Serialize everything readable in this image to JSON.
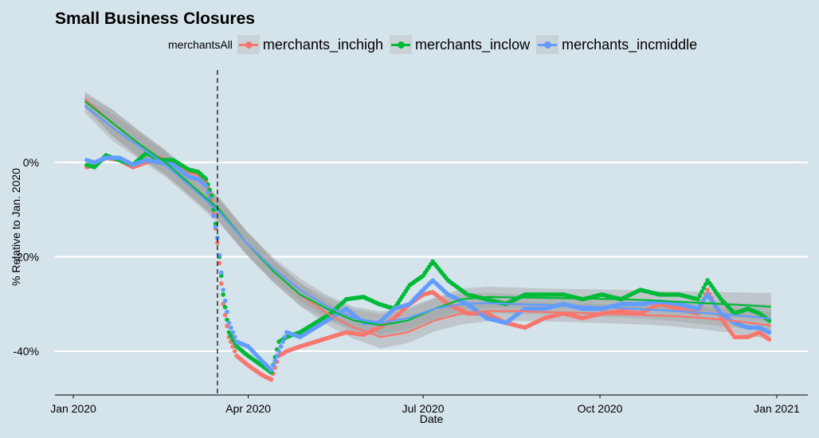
{
  "chart_data": {
    "type": "scatter",
    "title": "Small Business Closures",
    "xlabel": "Date",
    "ylabel": "% Relative to Jan. 2020",
    "legend_title": "merchantsAll",
    "legend_position": "top",
    "grid": "horizontal major only",
    "xlim": [
      "2020-01-01",
      "2021-01-01"
    ],
    "ylim": [
      -49,
      17
    ],
    "x_ticks": [
      {
        "date": "2020-01-01",
        "label": "Jan 2020"
      },
      {
        "date": "2020-04-01",
        "label": "Apr 2020"
      },
      {
        "date": "2020-07-01",
        "label": "Jul 2020"
      },
      {
        "date": "2020-10-01",
        "label": "Oct 2020"
      },
      {
        "date": "2021-01-01",
        "label": "Jan 2021"
      }
    ],
    "y_ticks": [
      {
        "value": 0,
        "label": "0%"
      },
      {
        "value": -20,
        "label": "-20%"
      },
      {
        "value": -40,
        "label": "-40%"
      }
    ],
    "vline": {
      "date": "2020-03-16",
      "style": "dashed"
    },
    "smooth_x": [
      "2020-01-07",
      "2020-01-21",
      "2020-02-04",
      "2020-02-18",
      "2020-03-03",
      "2020-03-17",
      "2020-03-31",
      "2020-04-14",
      "2020-04-28",
      "2020-05-12",
      "2020-05-26",
      "2020-06-09",
      "2020-06-23",
      "2020-07-07",
      "2020-07-21",
      "2020-08-04",
      "2020-08-18",
      "2020-09-01",
      "2020-09-15",
      "2020-09-29",
      "2020-10-13",
      "2020-10-27",
      "2020-11-10",
      "2020-11-24",
      "2020-12-08",
      "2020-12-22",
      "2020-12-29"
    ],
    "series": [
      {
        "name": "merchants_inchigh",
        "color": "#f8766d",
        "x": [
          "2020-01-08",
          "2020-01-12",
          "2020-01-18",
          "2020-01-25",
          "2020-02-01",
          "2020-02-08",
          "2020-02-15",
          "2020-02-22",
          "2020-03-01",
          "2020-03-06",
          "2020-03-10",
          "2020-03-13",
          "2020-03-16",
          "2020-03-19",
          "2020-03-22",
          "2020-03-26",
          "2020-04-01",
          "2020-04-08",
          "2020-04-13",
          "2020-04-17",
          "2020-04-21",
          "2020-04-28",
          "2020-05-06",
          "2020-05-14",
          "2020-05-22",
          "2020-05-31",
          "2020-06-08",
          "2020-06-16",
          "2020-06-24",
          "2020-07-01",
          "2020-07-06",
          "2020-07-14",
          "2020-07-24",
          "2020-08-03",
          "2020-08-13",
          "2020-08-23",
          "2020-09-02",
          "2020-09-12",
          "2020-09-22",
          "2020-10-02",
          "2020-10-12",
          "2020-10-22",
          "2020-11-01",
          "2020-11-11",
          "2020-11-21",
          "2020-11-26",
          "2020-12-03",
          "2020-12-10",
          "2020-12-17",
          "2020-12-23",
          "2020-12-28"
        ],
        "y": [
          -1,
          -0.5,
          1,
          0.5,
          -1,
          0,
          1,
          -0.5,
          -2,
          -2.5,
          -4,
          -8,
          -17,
          -30,
          -37,
          -41,
          -43,
          -45,
          -46,
          -41,
          -40,
          -39,
          -38,
          -37,
          -36,
          -36.5,
          -35,
          -33,
          -30,
          -28,
          -27.5,
          -30,
          -32,
          -32,
          -34,
          -35,
          -33,
          -32,
          -33,
          -32,
          -31.5,
          -32,
          -30,
          -31,
          -32,
          -27,
          -33,
          -37,
          -37,
          -36,
          -37.5
        ],
        "smooth_y": [
          13.5,
          8.5,
          4,
          0,
          -5,
          -10,
          -17,
          -23,
          -28,
          -32,
          -35,
          -37,
          -36,
          -33.5,
          -32,
          -31.5,
          -31.5,
          -31.7,
          -31.8,
          -32,
          -32.2,
          -32.4,
          -32.6,
          -33,
          -33.5,
          -34.2,
          -34.6
        ],
        "band": [
          1.5,
          2.8,
          2.8,
          2.6,
          2.5,
          2.5,
          2.5,
          2.4,
          2.4,
          2.4,
          2.4,
          2.4,
          2.3,
          2.3,
          2.3,
          2.2,
          2.1,
          2.0,
          2.0,
          2.0,
          2.0,
          2.0,
          2.2,
          2.4,
          2.6,
          2.8,
          3.0
        ]
      },
      {
        "name": "merchants_inclow",
        "color": "#00ba38",
        "x": [
          "2020-01-08",
          "2020-01-12",
          "2020-01-18",
          "2020-01-25",
          "2020-02-01",
          "2020-02-08",
          "2020-02-15",
          "2020-02-22",
          "2020-03-01",
          "2020-03-06",
          "2020-03-10",
          "2020-03-13",
          "2020-03-16",
          "2020-03-19",
          "2020-03-22",
          "2020-03-26",
          "2020-04-01",
          "2020-04-08",
          "2020-04-13",
          "2020-04-17",
          "2020-04-21",
          "2020-04-28",
          "2020-05-06",
          "2020-05-14",
          "2020-05-22",
          "2020-05-31",
          "2020-06-08",
          "2020-06-16",
          "2020-06-24",
          "2020-07-01",
          "2020-07-06",
          "2020-07-14",
          "2020-07-24",
          "2020-08-03",
          "2020-08-13",
          "2020-08-23",
          "2020-09-02",
          "2020-09-12",
          "2020-09-22",
          "2020-10-02",
          "2020-10-12",
          "2020-10-22",
          "2020-11-01",
          "2020-11-11",
          "2020-11-21",
          "2020-11-26",
          "2020-12-03",
          "2020-12-10",
          "2020-12-17",
          "2020-12-23",
          "2020-12-28"
        ],
        "y": [
          -0.5,
          -1,
          1.5,
          0.5,
          -0.5,
          2,
          0.5,
          0.5,
          -1.5,
          -2,
          -3.5,
          -7,
          -16,
          -28,
          -36,
          -39,
          -41,
          -43,
          -44.5,
          -38,
          -37,
          -36,
          -34,
          -32,
          -29,
          -28.5,
          -30,
          -31,
          -26,
          -24,
          -21,
          -25,
          -28,
          -29,
          -30,
          -28,
          -28,
          -28,
          -29,
          -28,
          -29,
          -27,
          -28,
          -28,
          -29,
          -25,
          -29,
          -32,
          -31,
          -32,
          -33.5
        ],
        "smooth_y": [
          13,
          8.5,
          4,
          0,
          -5,
          -10,
          -17,
          -23,
          -28,
          -31,
          -33.5,
          -34.5,
          -33.5,
          -31,
          -29,
          -28.5,
          -28.6,
          -28.7,
          -28.8,
          -28.9,
          -29,
          -29.2,
          -29.5,
          -29.8,
          -30.1,
          -30.4,
          -30.6
        ],
        "band": [
          1.5,
          2.8,
          2.8,
          2.6,
          2.5,
          2.5,
          2.5,
          2.4,
          2.4,
          2.4,
          2.4,
          2.4,
          2.3,
          2.3,
          2.3,
          2.2,
          2.1,
          2.0,
          2.0,
          2.0,
          2.0,
          2.0,
          2.2,
          2.4,
          2.6,
          2.8,
          3.0
        ]
      },
      {
        "name": "merchants_incmiddle",
        "color": "#619cff",
        "x": [
          "2020-01-08",
          "2020-01-12",
          "2020-01-18",
          "2020-01-25",
          "2020-02-01",
          "2020-02-08",
          "2020-02-15",
          "2020-02-22",
          "2020-03-01",
          "2020-03-06",
          "2020-03-10",
          "2020-03-13",
          "2020-03-16",
          "2020-03-19",
          "2020-03-22",
          "2020-03-26",
          "2020-04-01",
          "2020-04-08",
          "2020-04-13",
          "2020-04-17",
          "2020-04-21",
          "2020-04-28",
          "2020-05-06",
          "2020-05-14",
          "2020-05-22",
          "2020-05-31",
          "2020-06-08",
          "2020-06-16",
          "2020-06-24",
          "2020-07-01",
          "2020-07-06",
          "2020-07-14",
          "2020-07-24",
          "2020-08-03",
          "2020-08-13",
          "2020-08-23",
          "2020-09-02",
          "2020-09-12",
          "2020-09-22",
          "2020-10-02",
          "2020-10-12",
          "2020-10-22",
          "2020-11-01",
          "2020-11-11",
          "2020-11-21",
          "2020-11-26",
          "2020-12-03",
          "2020-12-10",
          "2020-12-17",
          "2020-12-23",
          "2020-12-28"
        ],
        "y": [
          0.5,
          0,
          1,
          1,
          -0.5,
          0.5,
          0,
          -0.5,
          -3,
          -3.5,
          -5,
          -9,
          -16,
          -27,
          -34,
          -38,
          -39,
          -42,
          -44,
          -40,
          -36,
          -37,
          -35,
          -33,
          -31,
          -34,
          -34,
          -31,
          -30,
          -27,
          -25,
          -28,
          -30,
          -33,
          -34,
          -31,
          -31,
          -30,
          -31,
          -31,
          -30,
          -30,
          -29.5,
          -30,
          -31,
          -28,
          -32,
          -34,
          -35,
          -35,
          -36
        ],
        "smooth_y": [
          12,
          7.5,
          3.5,
          -0.5,
          -5.5,
          -10.5,
          -17,
          -22.5,
          -27,
          -30.5,
          -33,
          -34,
          -33,
          -31,
          -30,
          -29.8,
          -30,
          -30.2,
          -30.4,
          -30.6,
          -30.9,
          -31.2,
          -31.5,
          -31.9,
          -32.3,
          -32.8,
          -33.1
        ],
        "band": [
          1.5,
          2.8,
          2.8,
          2.6,
          2.5,
          2.5,
          2.5,
          2.4,
          2.4,
          2.4,
          2.4,
          2.4,
          2.3,
          2.3,
          2.3,
          2.2,
          2.1,
          2.0,
          2.0,
          2.0,
          2.0,
          2.0,
          2.2,
          2.4,
          2.6,
          2.8,
          3.0
        ]
      }
    ]
  }
}
